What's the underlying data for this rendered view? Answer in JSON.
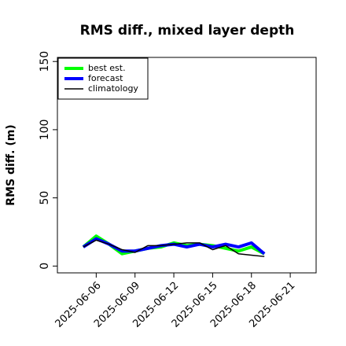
{
  "chart_data": {
    "type": "line",
    "title": "RMS diff., mixed layer depth",
    "y_label": "RMS diff. (m)",
    "x": [
      "2025-06-05",
      "2025-06-06",
      "2025-06-07",
      "2025-06-08",
      "2025-06-09",
      "2025-06-10",
      "2025-06-11",
      "2025-06-12",
      "2025-06-13",
      "2025-06-14",
      "2025-06-15",
      "2025-06-16",
      "2025-06-17",
      "2025-06-18",
      "2025-06-19"
    ],
    "series": [
      {
        "name": "best est.",
        "color": "#00ff00",
        "width": 4,
        "values": [
          14,
          22,
          16,
          9,
          11,
          13,
          14,
          17,
          15,
          16,
          15,
          13,
          11,
          14,
          9
        ]
      },
      {
        "name": "forecast",
        "color": "#0000ff",
        "width": 4,
        "values": [
          14,
          20,
          16,
          11,
          11,
          13,
          15,
          16,
          14,
          16,
          14,
          16,
          14,
          17,
          9
        ]
      },
      {
        "name": "climatology",
        "color": "#000000",
        "width": 1.5,
        "values": [
          14,
          19,
          16,
          12,
          10,
          15,
          15,
          16,
          17,
          17,
          12,
          15,
          9,
          8,
          7
        ]
      }
    ],
    "xlim": [
      "2025-06-03",
      "2025-06-23"
    ],
    "xticks": [
      "2025-06-06",
      "2025-06-09",
      "2025-06-12",
      "2025-06-15",
      "2025-06-18",
      "2025-06-21"
    ],
    "highlight_xtick": "2025-06-12",
    "highlight_color": "#228b22",
    "ylim": [
      -5,
      153
    ],
    "yticks": [
      0,
      50,
      100,
      150
    ],
    "legend": "upper left"
  }
}
